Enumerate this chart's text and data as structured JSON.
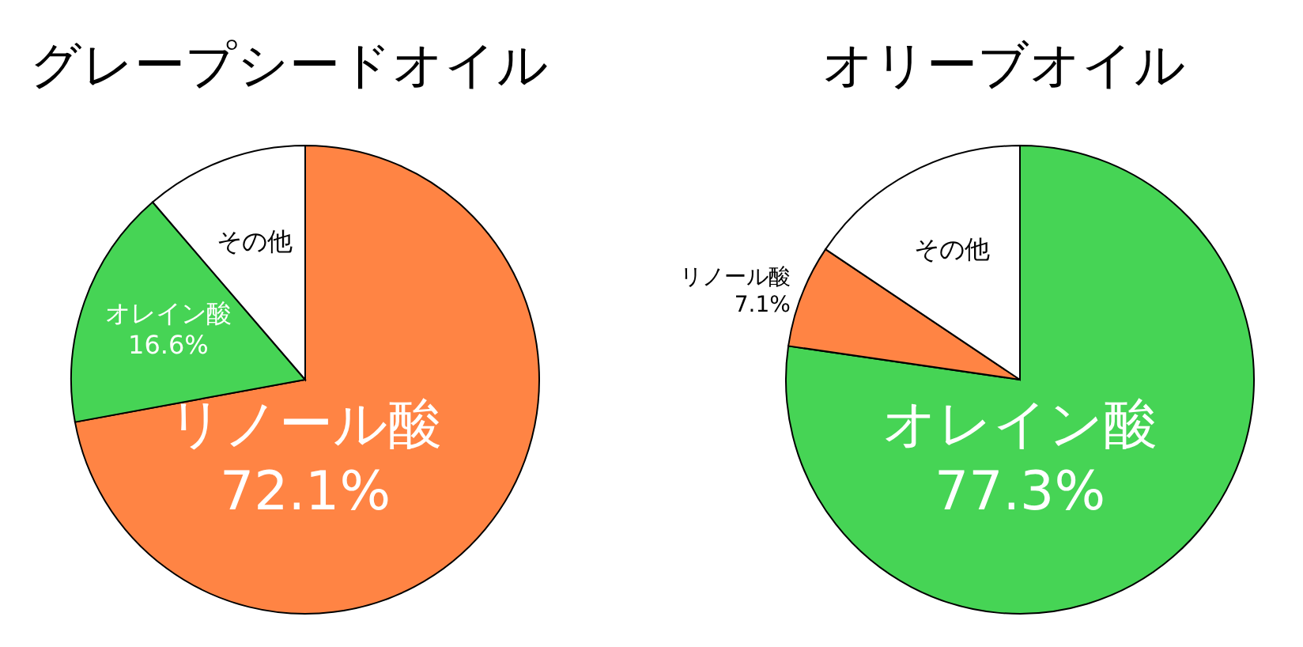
{
  "chart_data": [
    {
      "type": "pie",
      "title": "グレープシードオイル",
      "categories": [
        "リノール酸",
        "オレイン酸",
        "その他"
      ],
      "values": [
        72.1,
        16.6,
        11.3
      ],
      "colors": [
        "#ff8444",
        "#46d455",
        "#ffffff"
      ],
      "value_labels": [
        "72.1%",
        "16.6%",
        null
      ]
    },
    {
      "type": "pie",
      "title": "オリーブオイル",
      "categories": [
        "オレイン酸",
        "リノール酸",
        "その他"
      ],
      "values": [
        77.3,
        7.1,
        15.6
      ],
      "colors": [
        "#46d455",
        "#ff8444",
        "#ffffff"
      ],
      "value_labels": [
        "77.3%",
        "7.1%",
        null
      ]
    }
  ]
}
